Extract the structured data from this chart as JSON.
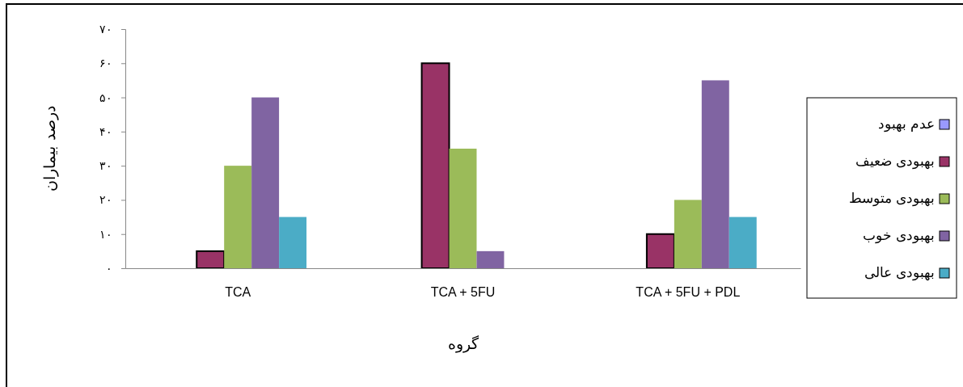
{
  "chart_data": {
    "type": "bar",
    "xlabel": "گروه",
    "ylabel": "درصد بیماران",
    "categories": [
      "TCA",
      "TCA + 5FU",
      "TCA + 5FU + PDL"
    ],
    "series": [
      {
        "name": "عدم بهبود",
        "color": "#9999ff",
        "values": [
          0,
          0,
          0
        ]
      },
      {
        "name": "بهبودی ضعیف",
        "color": "#993366",
        "values": [
          5,
          60,
          10
        ]
      },
      {
        "name": "بهبودی متوسط",
        "color": "#9bbb59",
        "values": [
          30,
          35,
          20
        ]
      },
      {
        "name": "بهبودی خوب",
        "color": "#8064a2",
        "values": [
          50,
          5,
          55
        ]
      },
      {
        "name": "بهبودی عالی",
        "color": "#4bacc6",
        "values": [
          15,
          0,
          15
        ]
      }
    ],
    "ylim": [
      0,
      70
    ],
    "yticks": [
      {
        "value": 0,
        "label": "۰"
      },
      {
        "value": 10,
        "label": "۱۰"
      },
      {
        "value": 20,
        "label": "۲۰"
      },
      {
        "value": 30,
        "label": "۳۰"
      },
      {
        "value": 40,
        "label": "۴۰"
      },
      {
        "value": 50,
        "label": "۵۰"
      },
      {
        "value": 60,
        "label": "۶۰"
      },
      {
        "value": 70,
        "label": "۷۰"
      }
    ],
    "grid": false,
    "legend": "right"
  }
}
